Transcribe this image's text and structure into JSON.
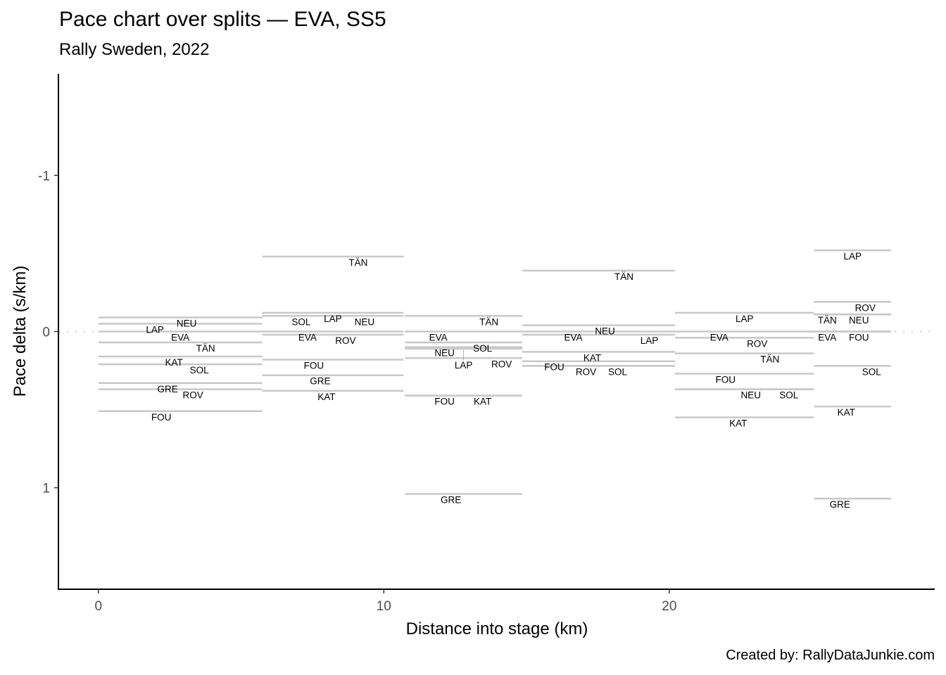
{
  "chart_data": {
    "type": "line",
    "chart_subtype": "pace-step-segments",
    "title": "Pace chart over splits — EVA, SS5",
    "subtitle": "Rally Sweden, 2022",
    "caption": "Created by: RallyDataJunkie.com",
    "xlabel": "Distance into stage (km)",
    "ylabel": "Pace delta (s/km)",
    "xlim": [
      -1.4,
      29.3
    ],
    "ylim": [
      -1.65,
      1.65
    ],
    "y_reversed": true,
    "x_ticks": [
      0,
      10,
      20
    ],
    "x_tick_labels": [
      "0",
      "10",
      "20"
    ],
    "y_ticks": [
      -1,
      0,
      1
    ],
    "y_tick_labels": [
      "-1",
      "0",
      "1"
    ],
    "reference_line": {
      "y": 0,
      "style": "dotted"
    },
    "grid": false,
    "legend": "none",
    "label_order": [
      "EVA",
      "FOU",
      "GRE",
      "KAT",
      "LAP",
      "NEU",
      "ROV",
      "SOL",
      "TÄN"
    ],
    "colors": {
      "segment": "#c8c8c8",
      "reference": "#cccccc",
      "axis": "#000000",
      "tick_text": "#4d4d4d"
    },
    "splits": [
      {
        "start": 0.0,
        "end": 5.74,
        "drivers": [
          {
            "code": "NEU",
            "delta": -0.09
          },
          {
            "code": "LAP",
            "delta": -0.05
          },
          {
            "code": "EVA",
            "delta": 0.0
          },
          {
            "code": "TÄN",
            "delta": 0.07
          },
          {
            "code": "KAT",
            "delta": 0.16
          },
          {
            "code": "SOL",
            "delta": 0.21
          },
          {
            "code": "GRE",
            "delta": 0.33
          },
          {
            "code": "ROV",
            "delta": 0.37
          },
          {
            "code": "FOU",
            "delta": 0.51
          }
        ]
      },
      {
        "start": 5.74,
        "end": 10.69,
        "drivers": [
          {
            "code": "TÄN",
            "delta": -0.48
          },
          {
            "code": "LAP",
            "delta": -0.12
          },
          {
            "code": "NEU",
            "delta": -0.1
          },
          {
            "code": "SOL",
            "delta": -0.1
          },
          {
            "code": "EVA",
            "delta": 0.0
          },
          {
            "code": "ROV",
            "delta": 0.02
          },
          {
            "code": "FOU",
            "delta": 0.18
          },
          {
            "code": "GRE",
            "delta": 0.28
          },
          {
            "code": "KAT",
            "delta": 0.38
          }
        ]
      },
      {
        "start": 10.74,
        "end": 14.85,
        "drivers": [
          {
            "code": "TÄN",
            "delta": -0.1
          },
          {
            "code": "EVA",
            "delta": 0.0
          },
          {
            "code": "SOL",
            "delta": 0.07
          },
          {
            "code": "NEU",
            "delta": 0.1
          },
          {
            "code": "LAP",
            "delta": 0.11
          },
          {
            "code": "ROV",
            "delta": 0.17
          },
          {
            "code": "FOU",
            "delta": 0.41
          },
          {
            "code": "KAT",
            "delta": 0.41
          },
          {
            "code": "GRE",
            "delta": 1.04
          }
        ]
      },
      {
        "start": 14.85,
        "end": 20.2,
        "drivers": [
          {
            "code": "TÄN",
            "delta": -0.39
          },
          {
            "code": "NEU",
            "delta": -0.04
          },
          {
            "code": "EVA",
            "delta": 0.0
          },
          {
            "code": "LAP",
            "delta": 0.02
          },
          {
            "code": "KAT",
            "delta": 0.13
          },
          {
            "code": "FOU",
            "delta": 0.19
          },
          {
            "code": "SOL",
            "delta": 0.22
          },
          {
            "code": "ROV",
            "delta": 0.22
          }
        ]
      },
      {
        "start": 20.2,
        "end": 25.07,
        "drivers": [
          {
            "code": "LAP",
            "delta": -0.12
          },
          {
            "code": "EVA",
            "delta": 0.0
          },
          {
            "code": "ROV",
            "delta": 0.04
          },
          {
            "code": "TÄN",
            "delta": 0.14
          },
          {
            "code": "FOU",
            "delta": 0.27
          },
          {
            "code": "NEU",
            "delta": 0.37
          },
          {
            "code": "SOL",
            "delta": 0.37
          },
          {
            "code": "KAT",
            "delta": 0.55
          }
        ]
      },
      {
        "start": 25.07,
        "end": 27.77,
        "drivers": [
          {
            "code": "LAP",
            "delta": -0.52
          },
          {
            "code": "ROV",
            "delta": -0.19
          },
          {
            "code": "NEU",
            "delta": -0.11
          },
          {
            "code": "TÄN",
            "delta": -0.11
          },
          {
            "code": "EVA",
            "delta": 0.0
          },
          {
            "code": "FOU",
            "delta": 0.0
          },
          {
            "code": "SOL",
            "delta": 0.22
          },
          {
            "code": "KAT",
            "delta": 0.48
          },
          {
            "code": "GRE",
            "delta": 1.07
          }
        ]
      }
    ]
  }
}
